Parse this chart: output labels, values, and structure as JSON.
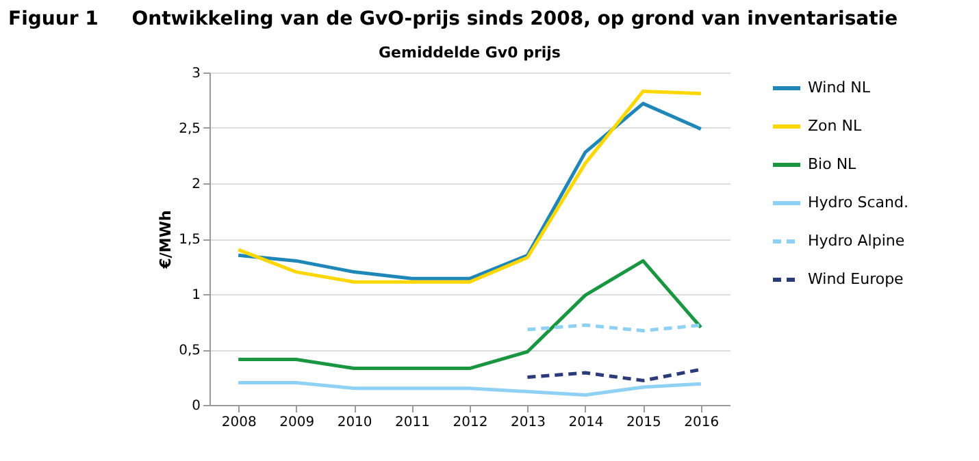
{
  "chart_data": {
    "type": "line",
    "title": "Figuur 1     Ontwikkeling van de GvO-prijs sinds 2008, op grond van inventarisatie",
    "subtitle": "Gemiddelde Gv0 prijs",
    "ylabel": "€/MWh",
    "categories": [
      "2008",
      "2009",
      "2010",
      "2011",
      "2012",
      "2013",
      "2014",
      "2015",
      "2016"
    ],
    "series": [
      {
        "name": "Wind NL",
        "color": "#1f86b8",
        "line_style": "solid",
        "values": [
          1.35,
          1.3,
          1.2,
          1.14,
          1.14,
          1.35,
          2.28,
          2.72,
          2.49
        ]
      },
      {
        "name": "Zon NL",
        "color": "#ffd700",
        "line_style": "solid",
        "values": [
          1.4,
          1.2,
          1.11,
          1.11,
          1.11,
          1.33,
          2.18,
          2.83,
          2.81
        ]
      },
      {
        "name": "Bio NL",
        "color": "#1a9641",
        "line_style": "solid",
        "values": [
          0.41,
          0.41,
          0.33,
          0.33,
          0.33,
          0.48,
          0.99,
          1.3,
          0.7
        ]
      },
      {
        "name": "Hydro Scand.",
        "color": "#8fd0f5",
        "line_style": "solid",
        "values": [
          0.2,
          0.2,
          0.15,
          0.15,
          0.15,
          0.12,
          0.09,
          0.16,
          0.19
        ]
      },
      {
        "name": "Hydro Alpine",
        "color": "#8fd0f5",
        "line_style": "dashed",
        "values": [
          null,
          null,
          null,
          null,
          null,
          0.68,
          0.72,
          0.67,
          0.72
        ]
      },
      {
        "name": "Wind Europe",
        "color": "#2b3a78",
        "line_style": "dashed",
        "values": [
          null,
          null,
          null,
          null,
          null,
          0.25,
          0.29,
          0.22,
          0.32
        ]
      }
    ],
    "ylim": [
      0,
      3
    ],
    "yticks": [
      0,
      {
        "value": 0.5,
        "label": "0,5"
      },
      1,
      {
        "value": 1.5,
        "label": "1,5"
      },
      2,
      {
        "value": 2.5,
        "label": "2,5"
      },
      3
    ],
    "grid": "y",
    "legend": "right",
    "marker": "none"
  }
}
